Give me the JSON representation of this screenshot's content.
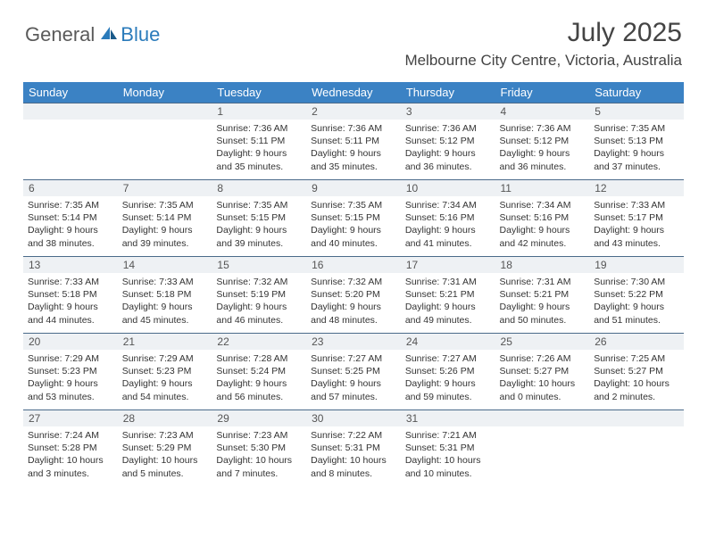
{
  "brand": {
    "part1": "General",
    "part2": "Blue"
  },
  "title": "July 2025",
  "location": "Melbourne City Centre, Victoria, Australia",
  "colors": {
    "header_bg": "#3b82c4",
    "header_text": "#ffffff",
    "daynum_bg": "#eef1f4",
    "daynum_border": "#4a6a8a",
    "body_text": "#333333",
    "brand_gray": "#5a5a5a",
    "brand_blue": "#2b7bbb"
  },
  "weekdays": [
    "Sunday",
    "Monday",
    "Tuesday",
    "Wednesday",
    "Thursday",
    "Friday",
    "Saturday"
  ],
  "weeks": [
    [
      null,
      null,
      {
        "day": "1",
        "sunrise": "Sunrise: 7:36 AM",
        "sunset": "Sunset: 5:11 PM",
        "daylight1": "Daylight: 9 hours",
        "daylight2": "and 35 minutes."
      },
      {
        "day": "2",
        "sunrise": "Sunrise: 7:36 AM",
        "sunset": "Sunset: 5:11 PM",
        "daylight1": "Daylight: 9 hours",
        "daylight2": "and 35 minutes."
      },
      {
        "day": "3",
        "sunrise": "Sunrise: 7:36 AM",
        "sunset": "Sunset: 5:12 PM",
        "daylight1": "Daylight: 9 hours",
        "daylight2": "and 36 minutes."
      },
      {
        "day": "4",
        "sunrise": "Sunrise: 7:36 AM",
        "sunset": "Sunset: 5:12 PM",
        "daylight1": "Daylight: 9 hours",
        "daylight2": "and 36 minutes."
      },
      {
        "day": "5",
        "sunrise": "Sunrise: 7:35 AM",
        "sunset": "Sunset: 5:13 PM",
        "daylight1": "Daylight: 9 hours",
        "daylight2": "and 37 minutes."
      }
    ],
    [
      {
        "day": "6",
        "sunrise": "Sunrise: 7:35 AM",
        "sunset": "Sunset: 5:14 PM",
        "daylight1": "Daylight: 9 hours",
        "daylight2": "and 38 minutes."
      },
      {
        "day": "7",
        "sunrise": "Sunrise: 7:35 AM",
        "sunset": "Sunset: 5:14 PM",
        "daylight1": "Daylight: 9 hours",
        "daylight2": "and 39 minutes."
      },
      {
        "day": "8",
        "sunrise": "Sunrise: 7:35 AM",
        "sunset": "Sunset: 5:15 PM",
        "daylight1": "Daylight: 9 hours",
        "daylight2": "and 39 minutes."
      },
      {
        "day": "9",
        "sunrise": "Sunrise: 7:35 AM",
        "sunset": "Sunset: 5:15 PM",
        "daylight1": "Daylight: 9 hours",
        "daylight2": "and 40 minutes."
      },
      {
        "day": "10",
        "sunrise": "Sunrise: 7:34 AM",
        "sunset": "Sunset: 5:16 PM",
        "daylight1": "Daylight: 9 hours",
        "daylight2": "and 41 minutes."
      },
      {
        "day": "11",
        "sunrise": "Sunrise: 7:34 AM",
        "sunset": "Sunset: 5:16 PM",
        "daylight1": "Daylight: 9 hours",
        "daylight2": "and 42 minutes."
      },
      {
        "day": "12",
        "sunrise": "Sunrise: 7:33 AM",
        "sunset": "Sunset: 5:17 PM",
        "daylight1": "Daylight: 9 hours",
        "daylight2": "and 43 minutes."
      }
    ],
    [
      {
        "day": "13",
        "sunrise": "Sunrise: 7:33 AM",
        "sunset": "Sunset: 5:18 PM",
        "daylight1": "Daylight: 9 hours",
        "daylight2": "and 44 minutes."
      },
      {
        "day": "14",
        "sunrise": "Sunrise: 7:33 AM",
        "sunset": "Sunset: 5:18 PM",
        "daylight1": "Daylight: 9 hours",
        "daylight2": "and 45 minutes."
      },
      {
        "day": "15",
        "sunrise": "Sunrise: 7:32 AM",
        "sunset": "Sunset: 5:19 PM",
        "daylight1": "Daylight: 9 hours",
        "daylight2": "and 46 minutes."
      },
      {
        "day": "16",
        "sunrise": "Sunrise: 7:32 AM",
        "sunset": "Sunset: 5:20 PM",
        "daylight1": "Daylight: 9 hours",
        "daylight2": "and 48 minutes."
      },
      {
        "day": "17",
        "sunrise": "Sunrise: 7:31 AM",
        "sunset": "Sunset: 5:21 PM",
        "daylight1": "Daylight: 9 hours",
        "daylight2": "and 49 minutes."
      },
      {
        "day": "18",
        "sunrise": "Sunrise: 7:31 AM",
        "sunset": "Sunset: 5:21 PM",
        "daylight1": "Daylight: 9 hours",
        "daylight2": "and 50 minutes."
      },
      {
        "day": "19",
        "sunrise": "Sunrise: 7:30 AM",
        "sunset": "Sunset: 5:22 PM",
        "daylight1": "Daylight: 9 hours",
        "daylight2": "and 51 minutes."
      }
    ],
    [
      {
        "day": "20",
        "sunrise": "Sunrise: 7:29 AM",
        "sunset": "Sunset: 5:23 PM",
        "daylight1": "Daylight: 9 hours",
        "daylight2": "and 53 minutes."
      },
      {
        "day": "21",
        "sunrise": "Sunrise: 7:29 AM",
        "sunset": "Sunset: 5:23 PM",
        "daylight1": "Daylight: 9 hours",
        "daylight2": "and 54 minutes."
      },
      {
        "day": "22",
        "sunrise": "Sunrise: 7:28 AM",
        "sunset": "Sunset: 5:24 PM",
        "daylight1": "Daylight: 9 hours",
        "daylight2": "and 56 minutes."
      },
      {
        "day": "23",
        "sunrise": "Sunrise: 7:27 AM",
        "sunset": "Sunset: 5:25 PM",
        "daylight1": "Daylight: 9 hours",
        "daylight2": "and 57 minutes."
      },
      {
        "day": "24",
        "sunrise": "Sunrise: 7:27 AM",
        "sunset": "Sunset: 5:26 PM",
        "daylight1": "Daylight: 9 hours",
        "daylight2": "and 59 minutes."
      },
      {
        "day": "25",
        "sunrise": "Sunrise: 7:26 AM",
        "sunset": "Sunset: 5:27 PM",
        "daylight1": "Daylight: 10 hours",
        "daylight2": "and 0 minutes."
      },
      {
        "day": "26",
        "sunrise": "Sunrise: 7:25 AM",
        "sunset": "Sunset: 5:27 PM",
        "daylight1": "Daylight: 10 hours",
        "daylight2": "and 2 minutes."
      }
    ],
    [
      {
        "day": "27",
        "sunrise": "Sunrise: 7:24 AM",
        "sunset": "Sunset: 5:28 PM",
        "daylight1": "Daylight: 10 hours",
        "daylight2": "and 3 minutes."
      },
      {
        "day": "28",
        "sunrise": "Sunrise: 7:23 AM",
        "sunset": "Sunset: 5:29 PM",
        "daylight1": "Daylight: 10 hours",
        "daylight2": "and 5 minutes."
      },
      {
        "day": "29",
        "sunrise": "Sunrise: 7:23 AM",
        "sunset": "Sunset: 5:30 PM",
        "daylight1": "Daylight: 10 hours",
        "daylight2": "and 7 minutes."
      },
      {
        "day": "30",
        "sunrise": "Sunrise: 7:22 AM",
        "sunset": "Sunset: 5:31 PM",
        "daylight1": "Daylight: 10 hours",
        "daylight2": "and 8 minutes."
      },
      {
        "day": "31",
        "sunrise": "Sunrise: 7:21 AM",
        "sunset": "Sunset: 5:31 PM",
        "daylight1": "Daylight: 10 hours",
        "daylight2": "and 10 minutes."
      },
      null,
      null
    ]
  ]
}
